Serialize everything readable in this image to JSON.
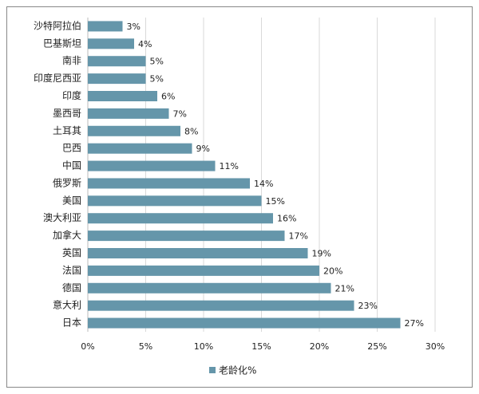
{
  "chart_data": {
    "type": "bar",
    "orientation": "horizontal",
    "categories": [
      "沙特阿拉伯",
      "巴基斯坦",
      "南非",
      "印度尼西亚",
      "印度",
      "墨西哥",
      "土耳其",
      "巴西",
      "中国",
      "俄罗斯",
      "美国",
      "澳大利亚",
      "加拿大",
      "英国",
      "法国",
      "德国",
      "意大利",
      "日本"
    ],
    "series": [
      {
        "name": "老龄化%",
        "color": "#6596aa",
        "values": [
          3,
          4,
          5,
          5,
          6,
          7,
          8,
          9,
          11,
          14,
          15,
          16,
          17,
          19,
          20,
          21,
          23,
          27
        ],
        "value_labels": [
          "3%",
          "4%",
          "5%",
          "5%",
          "6%",
          "7%",
          "8%",
          "9%",
          "11%",
          "14%",
          "15%",
          "16%",
          "17%",
          "19%",
          "20%",
          "21%",
          "23%",
          "27%"
        ]
      }
    ],
    "xlim": [
      0,
      30
    ],
    "xticks": [
      {
        "value": 0,
        "label": "0%"
      },
      {
        "value": 5,
        "label": "5%"
      },
      {
        "value": 10,
        "label": "10%"
      },
      {
        "value": 15,
        "label": "15%"
      },
      {
        "value": 20,
        "label": "20%"
      },
      {
        "value": 25,
        "label": "25%"
      },
      {
        "value": 30,
        "label": "30%"
      }
    ],
    "grid": true,
    "legend": "bottom"
  }
}
